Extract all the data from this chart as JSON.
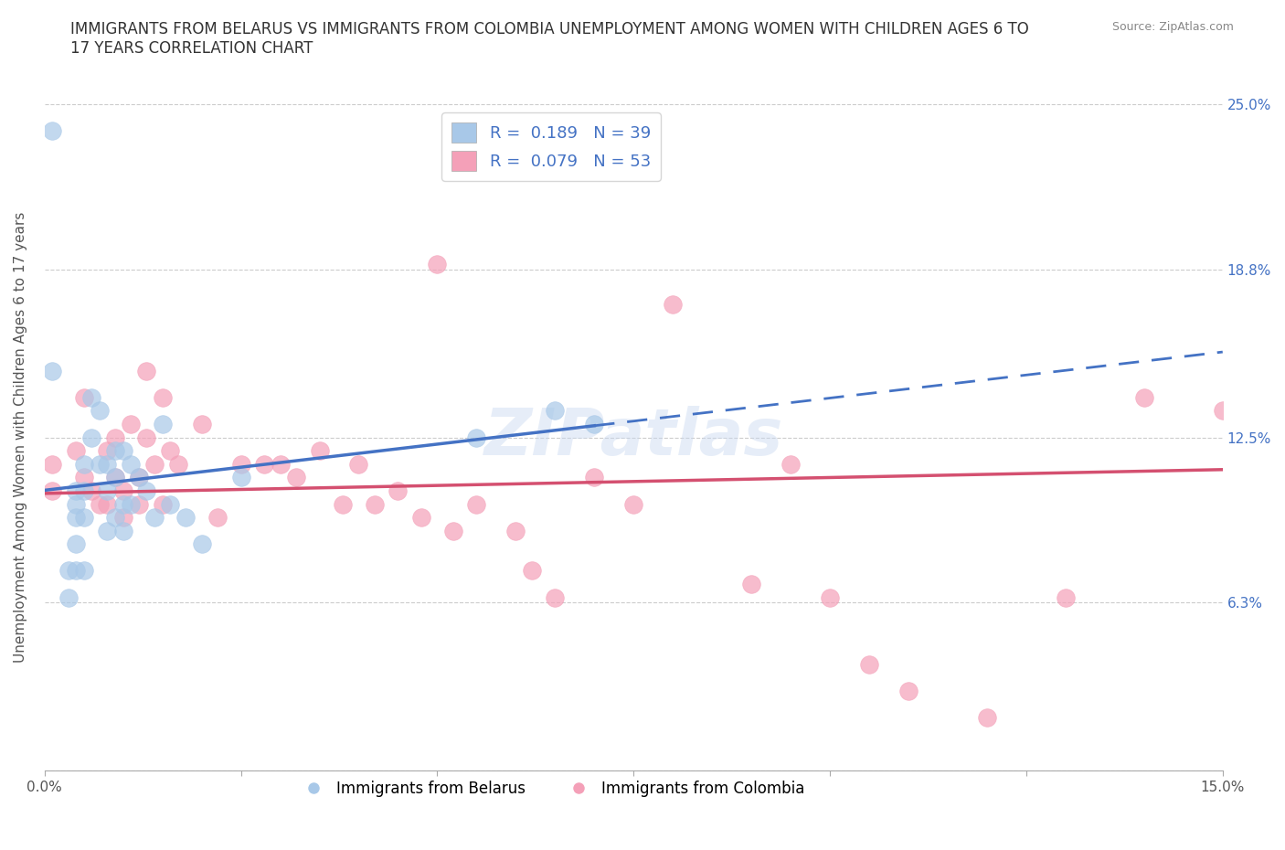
{
  "title": "IMMIGRANTS FROM BELARUS VS IMMIGRANTS FROM COLOMBIA UNEMPLOYMENT AMONG WOMEN WITH CHILDREN AGES 6 TO\n17 YEARS CORRELATION CHART",
  "source": "Source: ZipAtlas.com",
  "ylabel": "Unemployment Among Women with Children Ages 6 to 17 years",
  "xlim": [
    0.0,
    0.15
  ],
  "ylim": [
    0.0,
    0.25
  ],
  "xticks": [
    0.0,
    0.025,
    0.05,
    0.075,
    0.1,
    0.125,
    0.15
  ],
  "xticklabels": [
    "0.0%",
    "",
    "",
    "",
    "",
    "",
    "15.0%"
  ],
  "ytick_positions": [
    0.0,
    0.063,
    0.125,
    0.188,
    0.25
  ],
  "yticklabels_right": [
    "",
    "6.3%",
    "12.5%",
    "18.8%",
    "25.0%"
  ],
  "belarus_R": 0.189,
  "belarus_N": 39,
  "colombia_R": 0.079,
  "colombia_N": 53,
  "belarus_color": "#a8c8e8",
  "colombia_color": "#f4a0b8",
  "belarus_line_color": "#4472c4",
  "colombia_line_color": "#d45070",
  "legend_belarus_label": "Immigrants from Belarus",
  "legend_colombia_label": "Immigrants from Colombia",
  "belarus_x": [
    0.001,
    0.001,
    0.003,
    0.003,
    0.004,
    0.004,
    0.004,
    0.004,
    0.004,
    0.005,
    0.005,
    0.005,
    0.005,
    0.006,
    0.006,
    0.007,
    0.007,
    0.008,
    0.008,
    0.008,
    0.009,
    0.009,
    0.009,
    0.01,
    0.01,
    0.01,
    0.011,
    0.011,
    0.012,
    0.013,
    0.014,
    0.015,
    0.016,
    0.018,
    0.02,
    0.025,
    0.055,
    0.065,
    0.07
  ],
  "belarus_y": [
    0.24,
    0.15,
    0.075,
    0.065,
    0.105,
    0.1,
    0.095,
    0.085,
    0.075,
    0.115,
    0.105,
    0.095,
    0.075,
    0.14,
    0.125,
    0.135,
    0.115,
    0.115,
    0.105,
    0.09,
    0.12,
    0.11,
    0.095,
    0.12,
    0.1,
    0.09,
    0.115,
    0.1,
    0.11,
    0.105,
    0.095,
    0.13,
    0.1,
    0.095,
    0.085,
    0.11,
    0.125,
    0.135,
    0.13
  ],
  "colombia_x": [
    0.001,
    0.001,
    0.004,
    0.005,
    0.005,
    0.006,
    0.007,
    0.008,
    0.008,
    0.009,
    0.009,
    0.01,
    0.01,
    0.011,
    0.012,
    0.012,
    0.013,
    0.013,
    0.014,
    0.015,
    0.015,
    0.016,
    0.017,
    0.02,
    0.022,
    0.025,
    0.028,
    0.03,
    0.032,
    0.035,
    0.038,
    0.04,
    0.042,
    0.045,
    0.048,
    0.05,
    0.052,
    0.055,
    0.06,
    0.062,
    0.065,
    0.07,
    0.075,
    0.08,
    0.09,
    0.095,
    0.1,
    0.105,
    0.11,
    0.12,
    0.13,
    0.14,
    0.15
  ],
  "colombia_y": [
    0.115,
    0.105,
    0.12,
    0.14,
    0.11,
    0.105,
    0.1,
    0.12,
    0.1,
    0.125,
    0.11,
    0.105,
    0.095,
    0.13,
    0.11,
    0.1,
    0.15,
    0.125,
    0.115,
    0.14,
    0.1,
    0.12,
    0.115,
    0.13,
    0.095,
    0.115,
    0.115,
    0.115,
    0.11,
    0.12,
    0.1,
    0.115,
    0.1,
    0.105,
    0.095,
    0.19,
    0.09,
    0.1,
    0.09,
    0.075,
    0.065,
    0.11,
    0.1,
    0.175,
    0.07,
    0.115,
    0.065,
    0.04,
    0.03,
    0.02,
    0.065,
    0.14,
    0.135
  ]
}
